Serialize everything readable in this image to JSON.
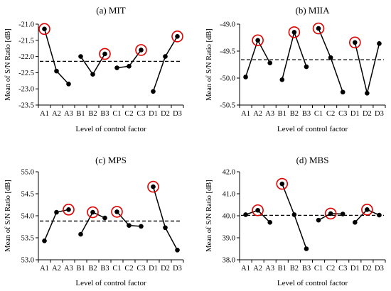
{
  "colors": {
    "line": "#000000",
    "highlight": "#e00000",
    "mean_line": "#000000",
    "axis": "#000000"
  },
  "chart_data": [
    {
      "type": "line",
      "title": "(a) MIT",
      "xlabel": "Level of control factor",
      "ylabel": "Mean of S/N Ratio [dB]",
      "ylim": [
        -23.5,
        -21.0
      ],
      "yticks": [
        -21.0,
        -21.5,
        -22.0,
        -22.5,
        -23.0,
        -23.5
      ],
      "ytick_labels": [
        "-21.0",
        "-21.5",
        "-22.0",
        "-22.5",
        "-23.0",
        "-23.5"
      ],
      "categories": [
        "A1",
        "A2",
        "A3",
        "B1",
        "B2",
        "B3",
        "C1",
        "C2",
        "C3",
        "D1",
        "D2",
        "D3"
      ],
      "groups": [
        [
          0,
          1,
          2
        ],
        [
          3,
          4,
          5
        ],
        [
          6,
          7,
          8
        ],
        [
          9,
          10,
          11
        ]
      ],
      "values": [
        -21.15,
        -22.45,
        -22.85,
        -22.0,
        -22.55,
        -21.92,
        -22.35,
        -22.3,
        -21.8,
        -23.08,
        -22.0,
        -21.38
      ],
      "mean": -22.15,
      "highlighted": [
        "A1",
        "B3",
        "C3",
        "D3"
      ]
    },
    {
      "type": "line",
      "title": "(b) MIIA",
      "xlabel": "Level of control factor",
      "ylabel": "Mean of S/N Ratio [dB]",
      "ylim": [
        -50.5,
        -49.0
      ],
      "yticks": [
        -49.0,
        -49.5,
        -50.0,
        -50.5
      ],
      "ytick_labels": [
        "-49.0",
        "-49.5",
        "-50.0",
        "-50.5"
      ],
      "categories": [
        "A1",
        "A2",
        "A3",
        "B1",
        "B2",
        "B3",
        "C1",
        "C2",
        "C3",
        "D1",
        "D2",
        "D3"
      ],
      "groups": [
        [
          0,
          1,
          2
        ],
        [
          3,
          4,
          5
        ],
        [
          6,
          7,
          8
        ],
        [
          9,
          10,
          11
        ]
      ],
      "values": [
        -49.98,
        -49.3,
        -49.72,
        -50.03,
        -49.15,
        -49.79,
        -49.08,
        -49.62,
        -50.26,
        -49.34,
        -50.28,
        -49.36
      ],
      "mean": -49.66,
      "highlighted": [
        "A2",
        "B2",
        "C1",
        "D1"
      ]
    },
    {
      "type": "line",
      "title": "(c) MPS",
      "xlabel": "Level of control factor",
      "ylabel": "Mean of S/N Ratio [dB]",
      "ylim": [
        53.0,
        55.0
      ],
      "yticks": [
        53.0,
        53.5,
        54.0,
        54.5,
        55.0
      ],
      "ytick_labels": [
        "53.0",
        "53.5",
        "54.0",
        "54.5",
        "55.0"
      ],
      "categories": [
        "A1",
        "A2",
        "A3",
        "B1",
        "B2",
        "B3",
        "C1",
        "C2",
        "C3",
        "D1",
        "D2",
        "D3"
      ],
      "groups": [
        [
          0,
          1,
          2
        ],
        [
          3,
          4,
          5
        ],
        [
          6,
          7,
          8
        ],
        [
          9,
          10,
          11
        ]
      ],
      "values": [
        53.43,
        54.08,
        54.14,
        53.58,
        54.08,
        53.95,
        54.09,
        53.78,
        53.76,
        54.66,
        53.73,
        53.22
      ],
      "mean": 53.88,
      "highlighted": [
        "A3",
        "B2",
        "C1",
        "D1"
      ]
    },
    {
      "type": "line",
      "title": "(d) MBS",
      "xlabel": "Level of control factor",
      "ylabel": "Mean of S/N Ratio [dB]",
      "ylim": [
        38.0,
        42.0
      ],
      "yticks": [
        38.0,
        39.0,
        40.0,
        41.0,
        42.0
      ],
      "ytick_labels": [
        "38.0",
        "39.0",
        "40.0",
        "41.0",
        "42.0"
      ],
      "categories": [
        "A1",
        "A2",
        "A3",
        "B1",
        "B2",
        "B3",
        "C1",
        "C2",
        "C3",
        "D1",
        "D2",
        "D3"
      ],
      "groups": [
        [
          0,
          1,
          2
        ],
        [
          3,
          4,
          5
        ],
        [
          6,
          7,
          8
        ],
        [
          9,
          10,
          11
        ]
      ],
      "values": [
        40.05,
        40.25,
        39.7,
        41.45,
        40.05,
        38.5,
        39.8,
        40.1,
        40.08,
        39.7,
        40.28,
        40.03
      ],
      "mean": 40.02,
      "highlighted": [
        "A2",
        "B1",
        "C2",
        "D2"
      ]
    }
  ]
}
